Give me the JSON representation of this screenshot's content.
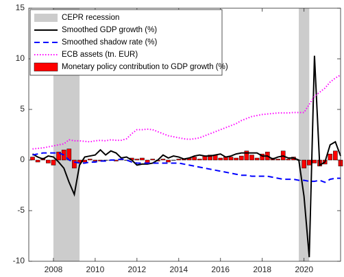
{
  "chart_data": {
    "type": "line",
    "x": [
      2007,
      2007.25,
      2007.5,
      2007.75,
      2008,
      2008.25,
      2008.5,
      2008.75,
      2009,
      2009.25,
      2009.5,
      2009.75,
      2010,
      2010.25,
      2010.5,
      2010.75,
      2011,
      2011.25,
      2011.5,
      2011.75,
      2012,
      2012.25,
      2012.5,
      2012.75,
      2013,
      2013.25,
      2013.5,
      2013.75,
      2014,
      2014.25,
      2014.5,
      2014.75,
      2015,
      2015.25,
      2015.5,
      2015.75,
      2016,
      2016.25,
      2016.5,
      2016.75,
      2017,
      2017.25,
      2017.5,
      2017.75,
      2018,
      2018.25,
      2018.5,
      2018.75,
      2019,
      2019.25,
      2019.5,
      2019.75,
      2020,
      2020.25,
      2020.5,
      2020.75,
      2021,
      2021.25,
      2021.5,
      2021.75
    ],
    "shaded_regions": {
      "name": "CEPR recession",
      "color": "#cccccc",
      "ranges": [
        [
          2008,
          2009.25
        ],
        [
          2019.75,
          2020.25
        ]
      ]
    },
    "series": [
      {
        "name": "Smoothed GDP growth (%)",
        "color": "#000000",
        "style": "solid",
        "values": [
          0.6,
          0.3,
          0.1,
          0.4,
          0.3,
          -0.2,
          -0.8,
          -2.2,
          -3.4,
          -0.5,
          0.3,
          0.4,
          0.5,
          1.0,
          0.5,
          0.9,
          0.7,
          0.2,
          0.3,
          0.0,
          -0.5,
          -0.4,
          -0.4,
          -0.3,
          0.0,
          0.5,
          0.2,
          0.4,
          0.3,
          0.1,
          0.2,
          0.4,
          0.5,
          0.4,
          0.4,
          0.5,
          0.6,
          0.3,
          0.4,
          0.6,
          0.7,
          0.7,
          0.7,
          0.7,
          0.4,
          0.4,
          0.1,
          0.3,
          0.4,
          0.2,
          0.2,
          0.0,
          -3.6,
          -9.6,
          10.3,
          -0.5,
          -0.2,
          1.5,
          1.8,
          0.4
        ]
      },
      {
        "name": "Smoothed shadow rate (%)",
        "color": "#0000ff",
        "style": "dashed",
        "values": [
          0.5,
          0.6,
          0.7,
          0.7,
          0.7,
          0.7,
          0.5,
          0.0,
          -0.2,
          -0.3,
          -0.3,
          -0.2,
          -0.2,
          -0.1,
          -0.1,
          0.0,
          0.0,
          0.1,
          0.0,
          -0.2,
          -0.3,
          -0.3,
          -0.3,
          -0.3,
          -0.3,
          -0.3,
          -0.3,
          -0.3,
          -0.3,
          -0.4,
          -0.5,
          -0.6,
          -0.7,
          -0.8,
          -0.9,
          -1.0,
          -1.1,
          -1.2,
          -1.3,
          -1.4,
          -1.5,
          -1.5,
          -1.6,
          -1.6,
          -1.6,
          -1.6,
          -1.7,
          -1.8,
          -1.9,
          -1.9,
          -1.9,
          -2.0,
          -2.0,
          -2.1,
          -2.1,
          -2.0,
          -2.2,
          -1.9,
          -1.8,
          -1.8
        ]
      },
      {
        "name": "ECB assets (tn. EUR)",
        "color": "#ff00ff",
        "style": "dotted",
        "values": [
          1.1,
          1.15,
          1.2,
          1.3,
          1.4,
          1.5,
          1.6,
          2.0,
          1.9,
          1.9,
          1.85,
          1.8,
          1.9,
          1.95,
          1.9,
          2.0,
          1.95,
          1.95,
          2.1,
          2.6,
          3.0,
          3.0,
          3.05,
          3.0,
          2.8,
          2.6,
          2.4,
          2.3,
          2.2,
          2.1,
          2.05,
          2.1,
          2.2,
          2.4,
          2.6,
          2.8,
          3.0,
          3.2,
          3.4,
          3.6,
          3.9,
          4.1,
          4.3,
          4.4,
          4.5,
          4.55,
          4.6,
          4.65,
          4.65,
          4.65,
          4.7,
          4.7,
          4.7,
          5.5,
          6.3,
          6.7,
          7.1,
          7.7,
          8.1,
          8.4
        ]
      },
      {
        "name": "Monetary policy contribution to GDP growth (%)",
        "color": "#ff0000",
        "style": "bar",
        "values": [
          0.3,
          -0.2,
          0.2,
          -0.3,
          -0.5,
          0.8,
          1.0,
          1.1,
          -0.8,
          -0.3,
          -0.2,
          0.1,
          -0.1,
          -0.1,
          0.0,
          0.0,
          -0.1,
          0.1,
          0.0,
          0.2,
          0.1,
          0.2,
          -0.3,
          0.1,
          -0.1,
          0.1,
          -0.2,
          0.0,
          0.1,
          0.1,
          0.2,
          0.3,
          0.1,
          0.4,
          0.5,
          0.5,
          0.2,
          0.3,
          0.3,
          0.2,
          0.4,
          0.9,
          0.5,
          0.2,
          0.6,
          0.8,
          0.2,
          0.1,
          0.9,
          0.1,
          0.3,
          0.0,
          -0.8,
          -0.5,
          -0.3,
          -0.6,
          -0.4,
          0.6,
          0.9,
          -0.6
        ]
      }
    ],
    "xlim": [
      2006.82,
      2021.75
    ],
    "xticks": [
      2008,
      2010,
      2012,
      2014,
      2016,
      2018,
      2020
    ],
    "ylim": [
      -10,
      15
    ],
    "yticks": [
      -10,
      -5,
      0,
      5,
      10,
      15
    ],
    "legend": "upper left"
  }
}
